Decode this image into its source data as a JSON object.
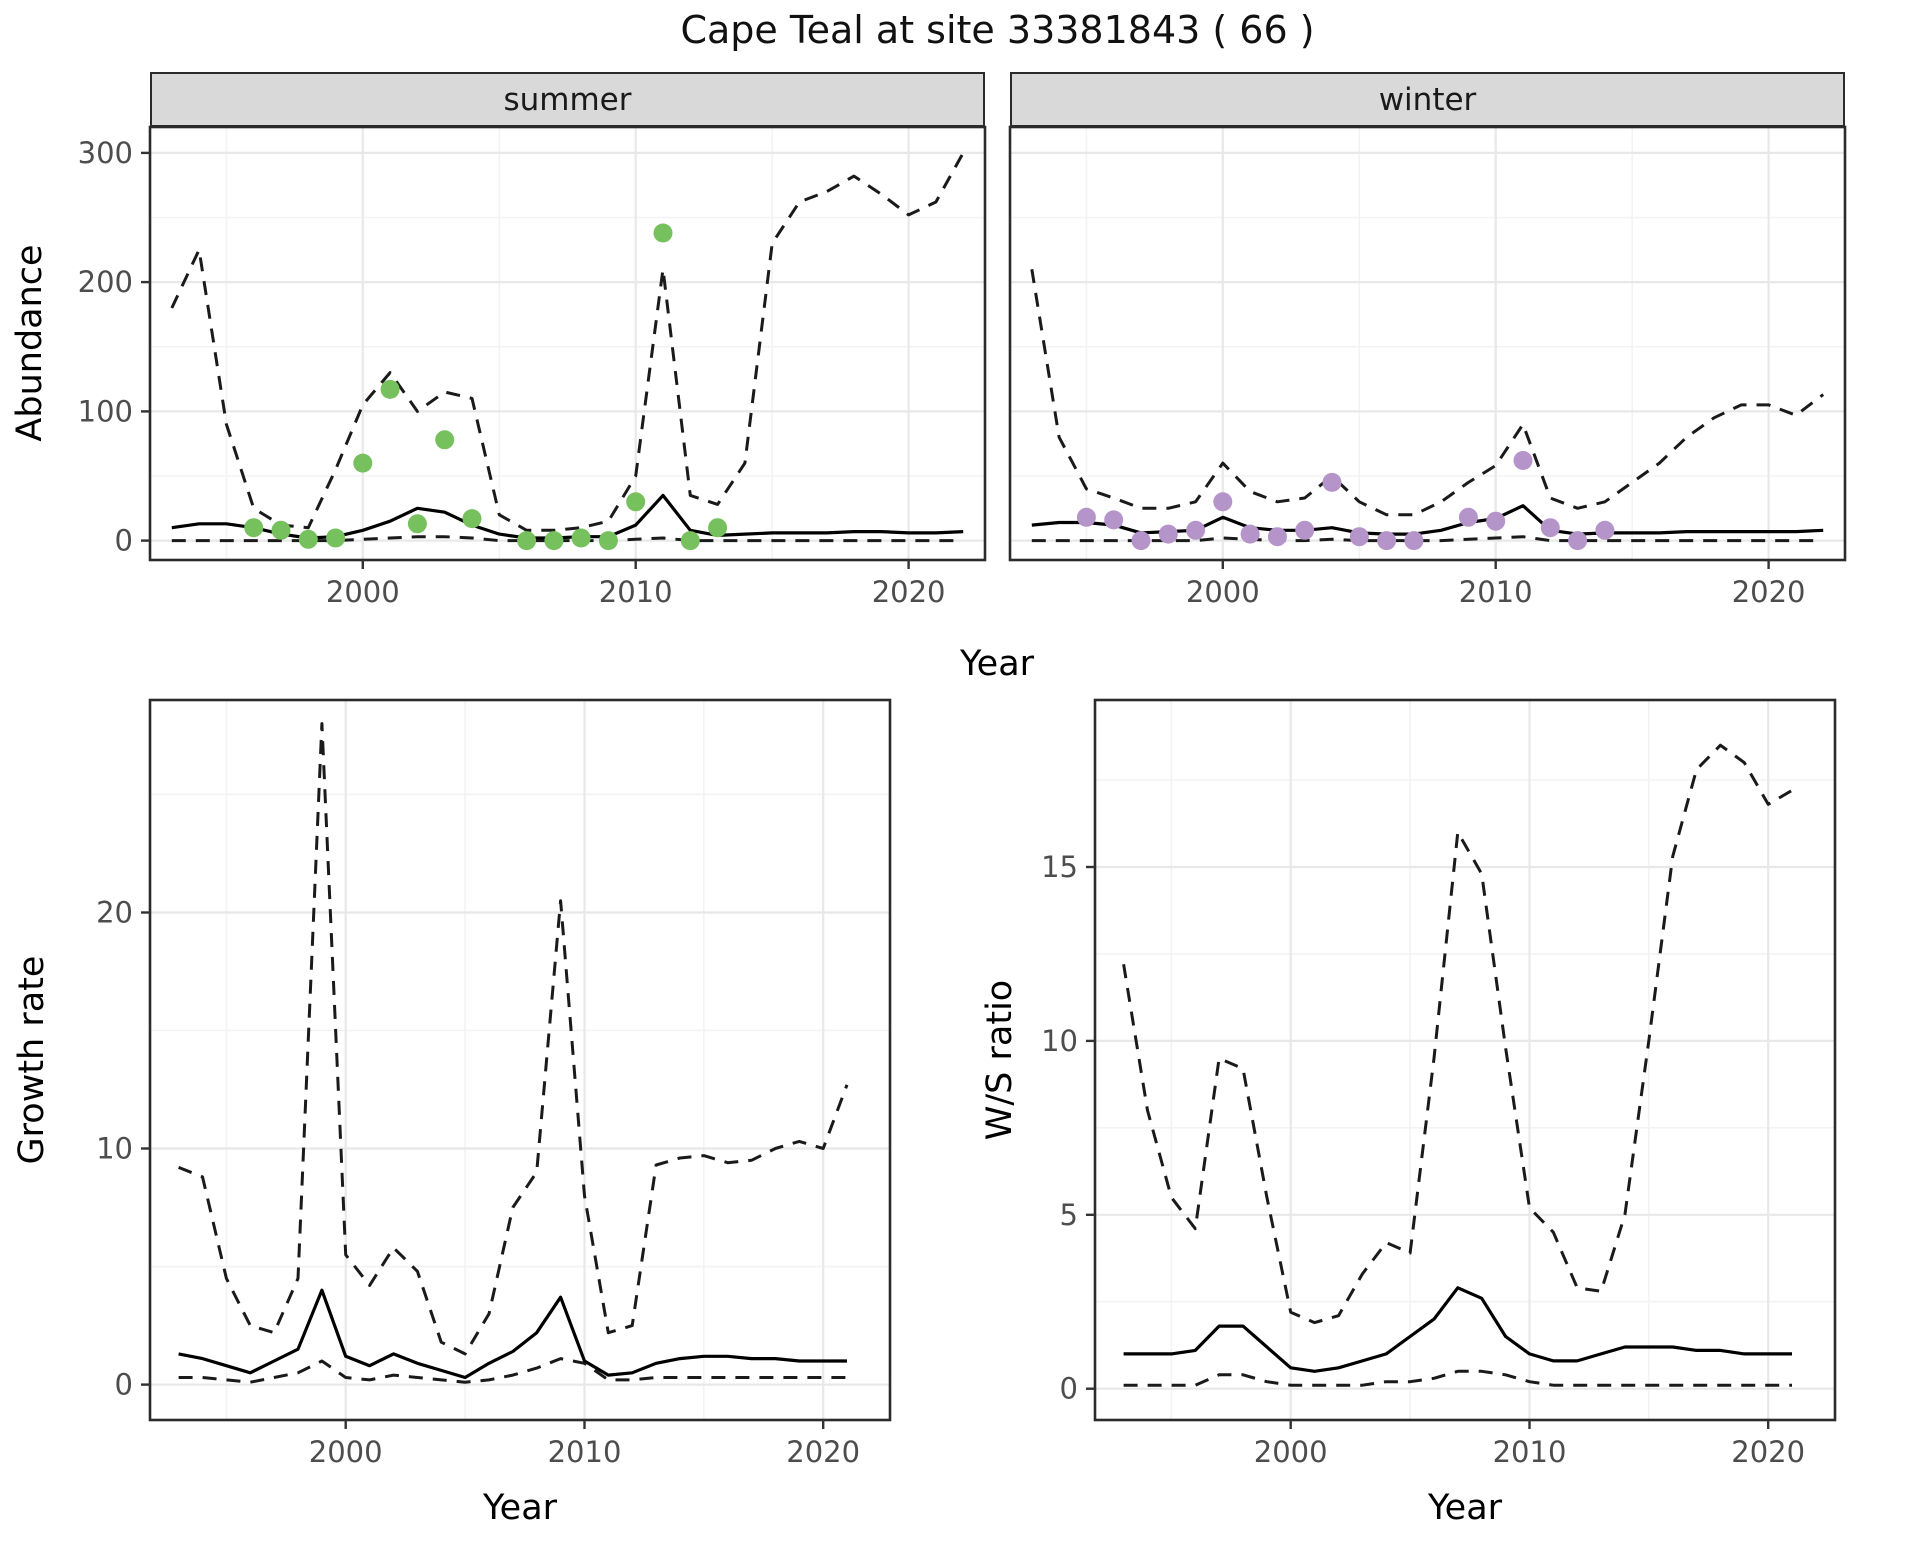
{
  "title": "Cape Teal at site 33381843 ( 66 )",
  "axes": {
    "xlabel": "Year",
    "abundance_ylabel": "Abundance",
    "growth_ylabel": "Growth rate",
    "ws_ylabel": "W/S ratio"
  },
  "facets": {
    "summer": "summer",
    "winter": "winter"
  },
  "colors": {
    "summer_point": "#77c05e",
    "winter_point": "#b494c9",
    "median_line": "#000000",
    "ci_line": "#1a1a1a",
    "strip_bg": "#d9d9d9",
    "panel_border": "#2b2b2b",
    "grid_major": "#e8e8e8",
    "grid_minor": "#f3f3f3",
    "tick_mark": "#333333",
    "tick_text": "#4d4d4d",
    "label_text": "#000000"
  },
  "chart_data": [
    {
      "key": "abundance_summer",
      "type": "line",
      "facet_label": "summer",
      "xlabel": "Year",
      "ylabel": "Abundance",
      "xlim": [
        1992.2,
        2022.8
      ],
      "ylim": [
        -15,
        320
      ],
      "xticks": [
        2000,
        2010,
        2020
      ],
      "yticks": [
        0,
        100,
        200,
        300
      ],
      "xticks_minor": [
        1995,
        2005,
        2015
      ],
      "yticks_minor": [
        50,
        150,
        250
      ],
      "years": [
        1993,
        1994,
        1995,
        1996,
        1997,
        1998,
        1999,
        2000,
        2001,
        2002,
        2003,
        2004,
        2005,
        2006,
        2007,
        2008,
        2009,
        2010,
        2011,
        2012,
        2013,
        2014,
        2015,
        2016,
        2017,
        2018,
        2019,
        2020,
        2021,
        2022
      ],
      "series": [
        {
          "name": "median",
          "style": "solid",
          "values": [
            10,
            13,
            13,
            10,
            5,
            2,
            3,
            8,
            15,
            25,
            22,
            12,
            5,
            2,
            2,
            3,
            3,
            12,
            35,
            8,
            4,
            5,
            6,
            6,
            6,
            7,
            7,
            6,
            6,
            7
          ]
        },
        {
          "name": "upper_ci",
          "style": "dashed",
          "values": [
            180,
            225,
            90,
            25,
            12,
            10,
            55,
            105,
            130,
            100,
            115,
            110,
            20,
            8,
            8,
            10,
            15,
            50,
            210,
            35,
            28,
            60,
            230,
            262,
            270,
            282,
            268,
            252,
            262,
            300
          ]
        },
        {
          "name": "lower_ci",
          "style": "dashed",
          "values": [
            0,
            0,
            0,
            0,
            0,
            0,
            0,
            1,
            2,
            3,
            3,
            2,
            0,
            0,
            0,
            0,
            0,
            1,
            2,
            0,
            0,
            0,
            0,
            0,
            0,
            0,
            0,
            0,
            0,
            0
          ]
        }
      ],
      "points": {
        "name": "observed_counts",
        "color_key": "summer_point",
        "x": [
          1996,
          1997,
          1998,
          1999,
          2000,
          2001,
          2002,
          2003,
          2004,
          2006,
          2007,
          2008,
          2009,
          2010,
          2011,
          2012,
          2013
        ],
        "y": [
          10,
          8,
          1,
          2,
          60,
          117,
          13,
          78,
          17,
          0,
          0,
          2,
          0,
          30,
          238,
          0,
          10
        ]
      }
    },
    {
      "key": "abundance_winter",
      "type": "line",
      "facet_label": "winter",
      "xlabel": "Year",
      "ylabel": "Abundance",
      "xlim": [
        1992.2,
        2022.8
      ],
      "ylim": [
        -15,
        320
      ],
      "xticks": [
        2000,
        2010,
        2020
      ],
      "yticks": [
        0,
        100,
        200,
        300
      ],
      "xticks_minor": [
        1995,
        2005,
        2015
      ],
      "yticks_minor": [
        50,
        150,
        250
      ],
      "years": [
        1993,
        1994,
        1995,
        1996,
        1997,
        1998,
        1999,
        2000,
        2001,
        2002,
        2003,
        2004,
        2005,
        2006,
        2007,
        2008,
        2009,
        2010,
        2011,
        2012,
        2013,
        2014,
        2015,
        2016,
        2017,
        2018,
        2019,
        2020,
        2021,
        2022
      ],
      "series": [
        {
          "name": "median",
          "style": "solid",
          "values": [
            12,
            14,
            14,
            12,
            6,
            7,
            8,
            18,
            10,
            8,
            8,
            10,
            6,
            5,
            5,
            8,
            14,
            17,
            27,
            8,
            5,
            6,
            6,
            6,
            7,
            7,
            7,
            7,
            7,
            8
          ]
        },
        {
          "name": "upper_ci",
          "style": "dashed",
          "values": [
            210,
            80,
            40,
            33,
            25,
            25,
            30,
            60,
            38,
            30,
            33,
            50,
            30,
            20,
            20,
            30,
            45,
            58,
            90,
            33,
            25,
            30,
            45,
            60,
            80,
            95,
            105,
            105,
            97,
            113
          ]
        },
        {
          "name": "lower_ci",
          "style": "dashed",
          "values": [
            0,
            0,
            0,
            0,
            0,
            0,
            0,
            2,
            1,
            0,
            0,
            1,
            0,
            0,
            0,
            0,
            1,
            2,
            3,
            0,
            0,
            0,
            0,
            0,
            0,
            0,
            0,
            0,
            0,
            0
          ]
        }
      ],
      "points": {
        "name": "observed_counts",
        "color_key": "winter_point",
        "x": [
          1995,
          1996,
          1997,
          1998,
          1999,
          2000,
          2001,
          2002,
          2003,
          2004,
          2005,
          2006,
          2007,
          2009,
          2010,
          2011,
          2012,
          2013,
          2014
        ],
        "y": [
          18,
          16,
          0,
          5,
          8,
          30,
          5,
          3,
          8,
          45,
          3,
          0,
          0,
          18,
          15,
          62,
          10,
          0,
          8
        ]
      }
    },
    {
      "key": "growth_rate",
      "type": "line",
      "facet_label": null,
      "xlabel": "Year",
      "ylabel": "Growth rate",
      "xlim": [
        1991.8,
        2022.8
      ],
      "ylim": [
        -1.5,
        29
      ],
      "xticks": [
        2000,
        2010,
        2020
      ],
      "yticks": [
        0,
        10,
        20
      ],
      "xticks_minor": [
        1995,
        2005,
        2015
      ],
      "yticks_minor": [
        5,
        15,
        25
      ],
      "years": [
        1993,
        1994,
        1995,
        1996,
        1997,
        1998,
        1999,
        2000,
        2001,
        2002,
        2003,
        2004,
        2005,
        2006,
        2007,
        2008,
        2009,
        2010,
        2011,
        2012,
        2013,
        2014,
        2015,
        2016,
        2017,
        2018,
        2019,
        2020,
        2021
      ],
      "series": [
        {
          "name": "median",
          "style": "solid",
          "values": [
            1.3,
            1.1,
            0.8,
            0.5,
            1.0,
            1.5,
            4.0,
            1.2,
            0.8,
            1.3,
            0.9,
            0.6,
            0.3,
            0.9,
            1.4,
            2.2,
            3.7,
            1.0,
            0.4,
            0.5,
            0.9,
            1.1,
            1.2,
            1.2,
            1.1,
            1.1,
            1.0,
            1.0,
            1.0
          ]
        },
        {
          "name": "upper_ci",
          "style": "dashed",
          "values": [
            9.2,
            8.8,
            4.5,
            2.5,
            2.2,
            4.5,
            28.0,
            5.5,
            4.2,
            5.8,
            4.8,
            1.8,
            1.3,
            3.0,
            7.5,
            9.0,
            20.5,
            8.0,
            2.2,
            2.5,
            9.3,
            9.6,
            9.7,
            9.4,
            9.5,
            10.0,
            10.3,
            10.0,
            12.7
          ]
        },
        {
          "name": "lower_ci",
          "style": "dashed",
          "values": [
            0.3,
            0.3,
            0.2,
            0.1,
            0.3,
            0.5,
            1.0,
            0.3,
            0.2,
            0.4,
            0.3,
            0.2,
            0.1,
            0.2,
            0.4,
            0.7,
            1.1,
            0.9,
            0.2,
            0.2,
            0.3,
            0.3,
            0.3,
            0.3,
            0.3,
            0.3,
            0.3,
            0.3,
            0.3
          ]
        }
      ],
      "points": null
    },
    {
      "key": "ws_ratio",
      "type": "line",
      "facet_label": null,
      "xlabel": "Year",
      "ylabel": "W/S ratio",
      "xlim": [
        1991.8,
        2022.8
      ],
      "ylim": [
        -0.9,
        19.8
      ],
      "xticks": [
        2000,
        2010,
        2020
      ],
      "yticks": [
        0,
        5,
        10,
        15
      ],
      "xticks_minor": [
        1995,
        2005,
        2015
      ],
      "yticks_minor": [
        2.5,
        7.5,
        12.5,
        17.5
      ],
      "years": [
        1993,
        1994,
        1995,
        1996,
        1997,
        1998,
        1999,
        2000,
        2001,
        2002,
        2003,
        2004,
        2005,
        2006,
        2007,
        2008,
        2009,
        2010,
        2011,
        2012,
        2013,
        2014,
        2015,
        2016,
        2017,
        2018,
        2019,
        2020,
        2021
      ],
      "series": [
        {
          "name": "median",
          "style": "solid",
          "values": [
            1.0,
            1.0,
            1.0,
            1.1,
            1.8,
            1.8,
            1.2,
            0.6,
            0.5,
            0.6,
            0.8,
            1.0,
            1.5,
            2.0,
            2.9,
            2.6,
            1.5,
            1.0,
            0.8,
            0.8,
            1.0,
            1.2,
            1.2,
            1.2,
            1.1,
            1.1,
            1.0,
            1.0,
            1.0
          ]
        },
        {
          "name": "upper_ci",
          "style": "dashed",
          "values": [
            12.2,
            8.0,
            5.5,
            4.6,
            9.5,
            9.2,
            5.5,
            2.2,
            1.9,
            2.1,
            3.3,
            4.2,
            3.9,
            9.5,
            16.0,
            14.8,
            9.8,
            5.2,
            4.5,
            2.9,
            2.8,
            5.0,
            10.0,
            15.3,
            17.8,
            18.5,
            18.0,
            16.8,
            17.2
          ]
        },
        {
          "name": "lower_ci",
          "style": "dashed",
          "values": [
            0.1,
            0.1,
            0.1,
            0.1,
            0.4,
            0.4,
            0.2,
            0.1,
            0.1,
            0.1,
            0.1,
            0.2,
            0.2,
            0.3,
            0.5,
            0.5,
            0.4,
            0.2,
            0.1,
            0.1,
            0.1,
            0.1,
            0.1,
            0.1,
            0.1,
            0.1,
            0.1,
            0.1,
            0.1
          ]
        }
      ],
      "points": null
    }
  ]
}
